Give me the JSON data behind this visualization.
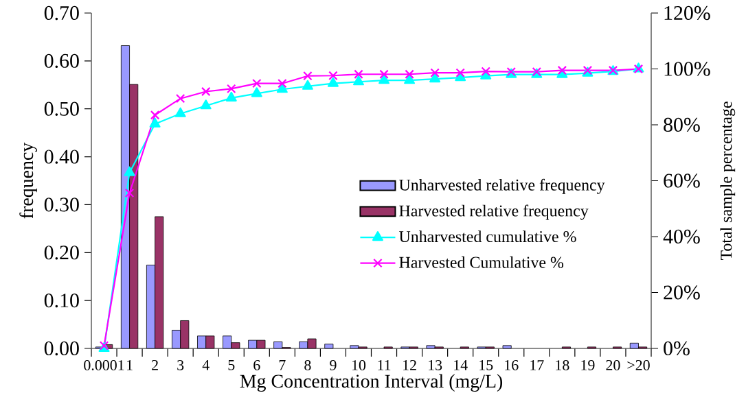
{
  "chart_data": {
    "type": "bar",
    "xlabel": "Mg Concentration Interval (mg/L)",
    "ylabel": "frequency",
    "y2label": "Total sample percentage",
    "categories": [
      "0.0001",
      "1",
      "2",
      "3",
      "4",
      "5",
      "6",
      "7",
      "8",
      "9",
      "10",
      "11",
      "12",
      "13",
      "14",
      "15",
      "16",
      "17",
      "18",
      "19",
      "20",
      ">20"
    ],
    "series": [
      {
        "name": "Unharvested relative frequency",
        "color": "#9999ff",
        "values": [
          0.003,
          0.632,
          0.174,
          0.038,
          0.026,
          0.026,
          0.017,
          0.014,
          0.014,
          0.009,
          0.006,
          null,
          0.003,
          0.006,
          null,
          0.003,
          0.006,
          null,
          null,
          null,
          null,
          0.011
        ]
      },
      {
        "name": "Harvested relative frequency",
        "color": "#993366",
        "values": [
          0.008,
          0.551,
          0.275,
          0.058,
          0.026,
          0.012,
          0.017,
          0.002,
          0.02,
          null,
          0.003,
          0.003,
          0.003,
          0.003,
          0.003,
          0.003,
          null,
          null,
          0.003,
          0.003,
          0.003,
          0.003
        ]
      },
      {
        "name": "Unharvested cumulative %",
        "type": "line",
        "axis": "y2",
        "marker": "triangle",
        "color": "#00ffff",
        "values": [
          0,
          62.9,
          80.3,
          84.0,
          86.8,
          89.6,
          91.2,
          92.7,
          93.8,
          94.8,
          95.4,
          95.9,
          95.9,
          96.4,
          96.9,
          97.5,
          98.0,
          98.0,
          98.0,
          98.5,
          99.1,
          100
        ]
      },
      {
        "name": "Harvested Cumulative %",
        "type": "line",
        "axis": "y2",
        "marker": "cross",
        "color": "#ff00ff",
        "values": [
          1.0,
          55.6,
          83.5,
          89.4,
          91.9,
          92.9,
          94.8,
          94.8,
          97.5,
          97.6,
          98.1,
          98.1,
          98.1,
          98.6,
          98.6,
          99.1,
          99.0,
          99.0,
          99.5,
          99.5,
          99.5,
          100
        ]
      }
    ],
    "ylim": [
      0,
      0.7
    ],
    "yticks": [
      {
        "value": 0,
        "label": "0.00"
      },
      {
        "value": 0.1,
        "label": "0.10"
      },
      {
        "value": 0.2,
        "label": "0.20"
      },
      {
        "value": 0.3,
        "label": "0.30"
      },
      {
        "value": 0.4,
        "label": "0.40"
      },
      {
        "value": 0.5,
        "label": "0.50"
      },
      {
        "value": 0.6,
        "label": "0.60"
      },
      {
        "value": 0.7,
        "label": "0.70"
      }
    ],
    "y2lim": [
      0,
      120
    ],
    "y2ticks": [
      {
        "value": 0,
        "label": "0%"
      },
      {
        "value": 20,
        "label": "20%"
      },
      {
        "value": 40,
        "label": "40%"
      },
      {
        "value": 60,
        "label": "60%"
      },
      {
        "value": 80,
        "label": "80%"
      },
      {
        "value": 100,
        "label": "100%"
      },
      {
        "value": 120,
        "label": "120%"
      }
    ],
    "legend": "right",
    "grid": false,
    "line_style": "solid"
  }
}
